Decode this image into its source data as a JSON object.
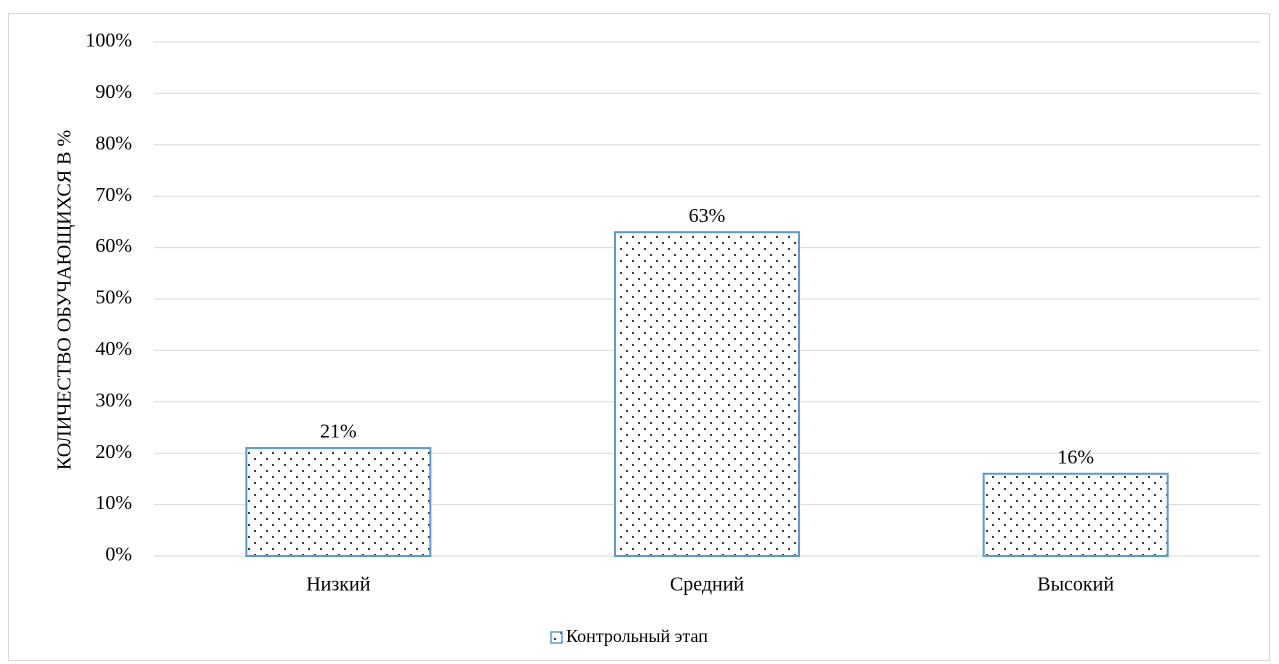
{
  "chart_data": {
    "type": "bar",
    "title": "",
    "xlabel": "",
    "ylabel": "КОЛИЧЕСТВО ОБУЧАЮЩИХСЯ В %",
    "categories": [
      "Низкий",
      "Средний",
      "Высокий"
    ],
    "series": [
      {
        "name": "Контрольный этап",
        "values": [
          21,
          63,
          16
        ],
        "data_labels": [
          "21%",
          "63%",
          "16%"
        ]
      }
    ],
    "ylim": [
      0,
      100
    ],
    "yticks": [
      0,
      10,
      20,
      30,
      40,
      50,
      60,
      70,
      80,
      90,
      100
    ],
    "ytick_labels": [
      "0%",
      "10%",
      "20%",
      "30%",
      "40%",
      "50%",
      "60%",
      "70%",
      "80%",
      "90%",
      "100%"
    ],
    "grid": true,
    "legend_position": "bottom",
    "colors": {
      "bar_border": "#5b9bd5",
      "bar_pattern_dot": "#000000",
      "gridline": "#d9d9d9",
      "axis_line": "#d9d9d9"
    }
  }
}
